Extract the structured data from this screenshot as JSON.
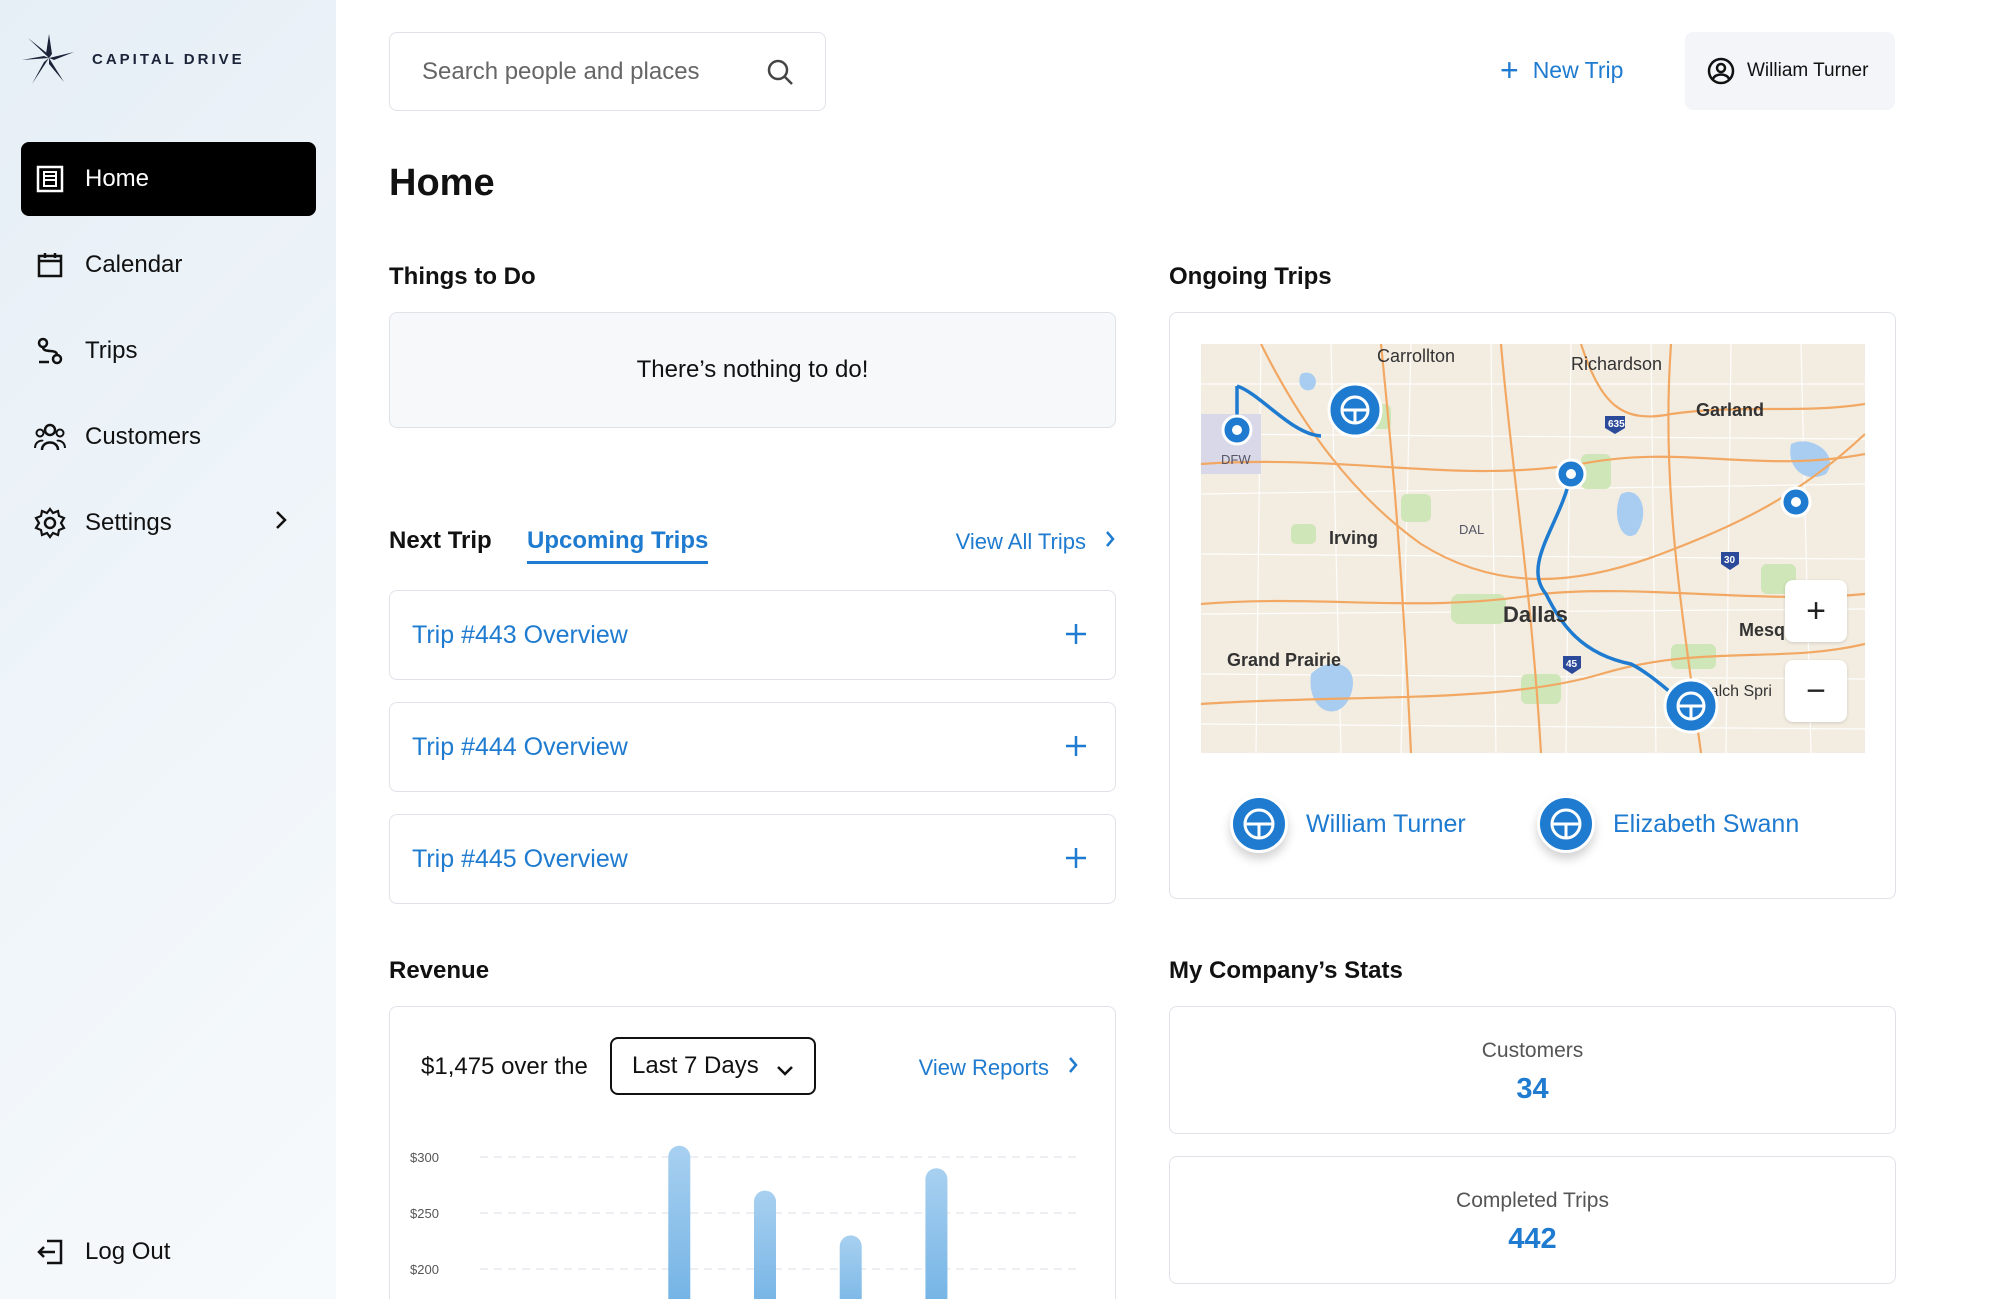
{
  "brand": {
    "name": "CAPITAL DRIVE"
  },
  "sidebar": {
    "items": [
      {
        "label": "Home",
        "icon": "building-icon",
        "active": true
      },
      {
        "label": "Calendar",
        "icon": "calendar-icon"
      },
      {
        "label": "Trips",
        "icon": "route-icon"
      },
      {
        "label": "Customers",
        "icon": "people-icon"
      },
      {
        "label": "Settings",
        "icon": "gear-icon"
      }
    ],
    "logout": "Log Out"
  },
  "topbar": {
    "search_placeholder": "Search people and places",
    "new_trip": "New Trip",
    "user": "William Turner"
  },
  "page": {
    "title": "Home"
  },
  "todo": {
    "title": "Things to Do",
    "empty": "There’s nothing to do!"
  },
  "trips": {
    "tab_next": "Next Trip",
    "tab_upcoming": "Upcoming Trips",
    "view_all": "View All Trips",
    "rows": [
      {
        "label": "Trip #443 Overview"
      },
      {
        "label": "Trip #444 Overview"
      },
      {
        "label": "Trip #445 Overview"
      }
    ]
  },
  "ongoing": {
    "title": "Ongoing Trips",
    "map_labels": {
      "carrollton": "Carrollton",
      "richardson": "Richardson",
      "garland": "Garland",
      "dfw": "DFW",
      "irving": "Irving",
      "dal": "DAL",
      "dallas": "Dallas",
      "grand_prairie": "Grand Prairie",
      "mesquite": "Mesq",
      "balch": "Balch Spri",
      "hwy635": "635",
      "hwy30": "30",
      "hwy45": "45"
    },
    "zoom_in": "+",
    "zoom_out": "−",
    "drivers": [
      {
        "name": "William Turner"
      },
      {
        "name": "Elizabeth Swann"
      }
    ]
  },
  "revenue": {
    "title": "Revenue",
    "summary": "$1,475 over the",
    "range": "Last 7 Days",
    "view_reports": "View Reports"
  },
  "chart_data": {
    "type": "bar",
    "categories": [
      "",
      "",
      "",
      "",
      "",
      "",
      ""
    ],
    "values": [
      null,
      null,
      310,
      270,
      230,
      290,
      null
    ],
    "y_ticks": [
      "$300",
      "$250",
      "$200"
    ],
    "ylim": [
      150,
      320
    ],
    "grid": true
  },
  "stats": {
    "title": "My Company’s Stats",
    "items": [
      {
        "label": "Customers",
        "value": "34"
      },
      {
        "label": "Completed Trips",
        "value": "442"
      }
    ]
  },
  "colors": {
    "accent": "#1e7bd0",
    "active_nav": "#000000"
  }
}
